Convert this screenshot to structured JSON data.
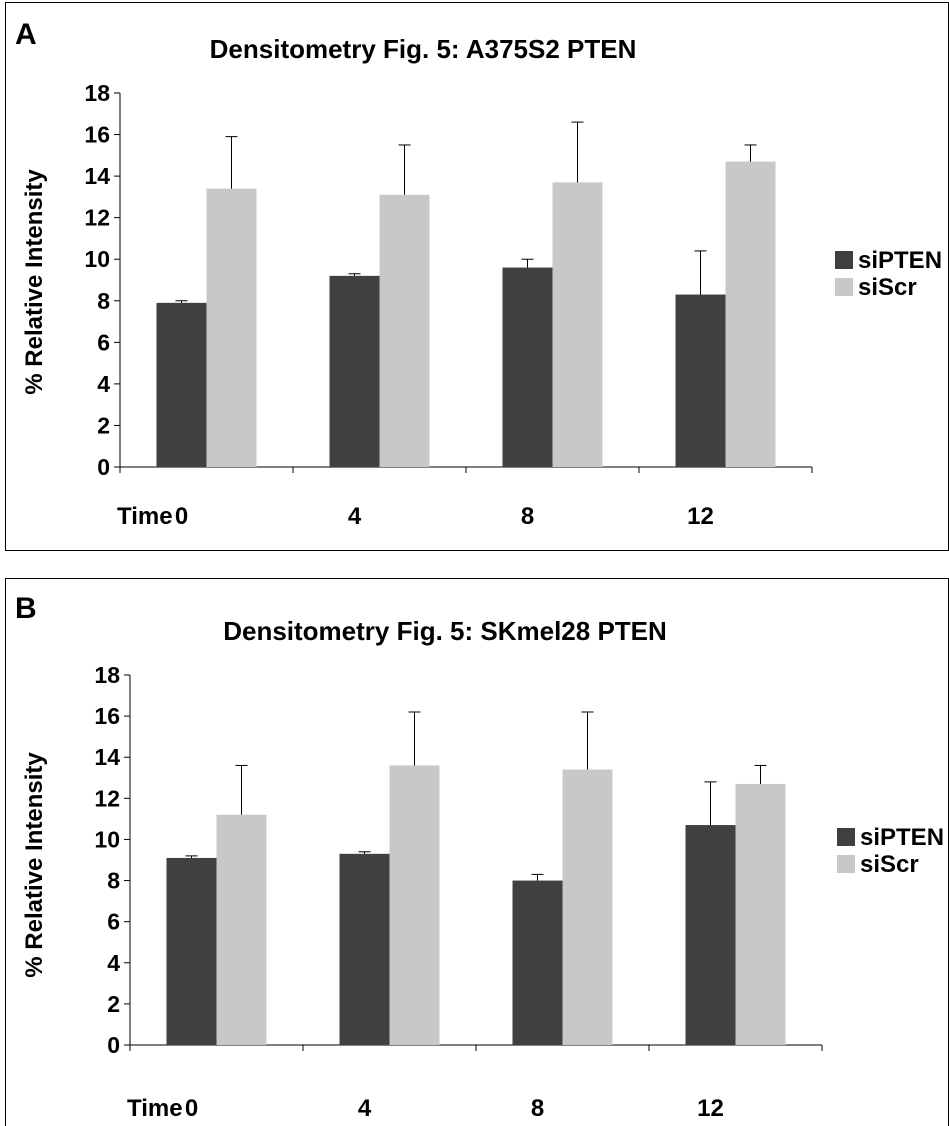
{
  "chart_data": [
    {
      "type": "bar",
      "panel_label": "A",
      "title": "Densitometry Fig. 5: A375S2 PTEN",
      "xlabel": "Time",
      "ylabel": "% Relative Intensity",
      "categories": [
        "0",
        "4",
        "8",
        "12"
      ],
      "ylim": [
        0,
        18
      ],
      "yticks": [
        "0",
        "2",
        "4",
        "6",
        "8",
        "10",
        "12",
        "14",
        "16",
        "18"
      ],
      "grid": false,
      "legend_position": "right",
      "series": [
        {
          "name": "siPTEN",
          "color": "#404040",
          "values": [
            7.9,
            9.2,
            9.6,
            8.3
          ],
          "errors": [
            0.1,
            0.1,
            0.4,
            2.1
          ]
        },
        {
          "name": "siScr",
          "color": "#c8c8c8",
          "values": [
            13.4,
            13.1,
            13.7,
            14.7
          ],
          "errors": [
            2.5,
            2.4,
            2.9,
            0.8
          ]
        }
      ]
    },
    {
      "type": "bar",
      "panel_label": "B",
      "title": "Densitometry Fig. 5: SKmel28 PTEN",
      "xlabel": "Time",
      "ylabel": "% Relative Intensity",
      "categories": [
        "0",
        "4",
        "8",
        "12"
      ],
      "ylim": [
        0,
        18
      ],
      "yticks": [
        "0",
        "2",
        "4",
        "6",
        "8",
        "10",
        "12",
        "14",
        "16",
        "18"
      ],
      "grid": false,
      "legend_position": "right",
      "series": [
        {
          "name": "siPTEN",
          "color": "#404040",
          "values": [
            9.1,
            9.3,
            8.0,
            10.7
          ],
          "errors": [
            0.1,
            0.1,
            0.3,
            2.1
          ]
        },
        {
          "name": "siScr",
          "color": "#c8c8c8",
          "values": [
            11.2,
            13.6,
            13.4,
            12.7
          ],
          "errors": [
            2.4,
            2.6,
            2.8,
            0.9
          ]
        }
      ]
    }
  ]
}
